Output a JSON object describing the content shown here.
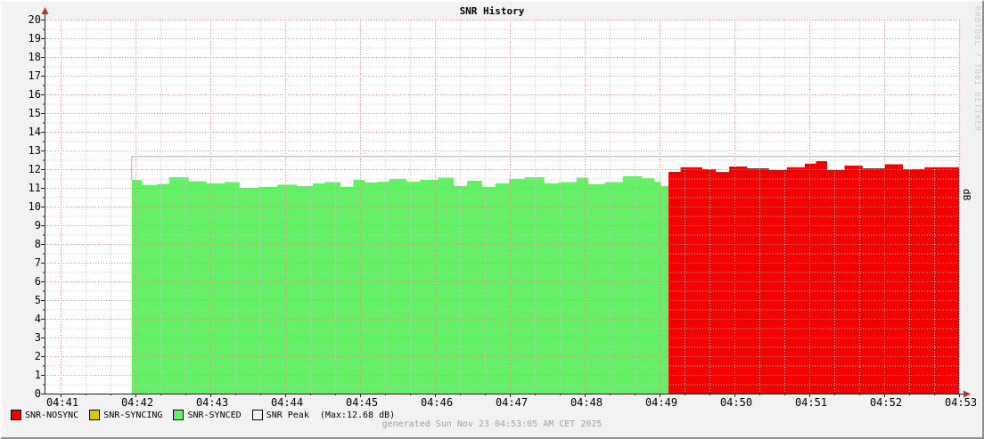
{
  "title": "SNR History",
  "watermark": "RRDTOOL / TOBI OETIKER",
  "footer": "generated Sun Nov 23 04:53:05 AM CET 2025",
  "legend": {
    "items": [
      {
        "id": "snr-nosync",
        "label": "SNR-NOSYNC",
        "color": "#f30000",
        "suffix": ""
      },
      {
        "id": "snr-syncing",
        "label": "SNR-SYNCING",
        "color": "#d9c800",
        "suffix": ""
      },
      {
        "id": "snr-synced",
        "label": "SNR-SYNCED",
        "color": "#64f064",
        "suffix": ""
      },
      {
        "id": "snr-peak",
        "label": "SNR Peak",
        "color": "#f2f2f2",
        "suffix": "(Max:12.68 dB)"
      }
    ]
  },
  "chart_data": {
    "type": "area",
    "title": "SNR History",
    "y_axis": {
      "min": 0,
      "max": 20,
      "major_step": 1,
      "minor_step": 0.5,
      "unit_right": "dB"
    },
    "x_axis": {
      "tick_labels": [
        "04:41",
        "04:42",
        "04:43",
        "04:44",
        "04:45",
        "04:46",
        "04:47",
        "04:48",
        "04:49",
        "04:50",
        "04:51",
        "04:52",
        "04:53"
      ],
      "minor_ticks_per_interval": 3
    },
    "series": [
      {
        "name": "SNR-SYNCED",
        "type": "area",
        "color": "#64f064",
        "t_end": 8.12,
        "steps": [
          [
            0.95,
            11.43
          ],
          [
            1.09,
            11.14
          ],
          [
            1.28,
            11.21
          ],
          [
            1.45,
            11.57
          ],
          [
            1.71,
            11.36
          ],
          [
            1.95,
            11.24
          ],
          [
            2.19,
            11.31
          ],
          [
            2.39,
            11.0
          ],
          [
            2.64,
            11.05
          ],
          [
            2.9,
            11.17
          ],
          [
            3.16,
            11.1
          ],
          [
            3.37,
            11.24
          ],
          [
            3.53,
            11.31
          ],
          [
            3.74,
            11.05
          ],
          [
            3.91,
            11.43
          ],
          [
            4.06,
            11.29
          ],
          [
            4.23,
            11.33
          ],
          [
            4.39,
            11.48
          ],
          [
            4.62,
            11.33
          ],
          [
            4.8,
            11.43
          ],
          [
            5.04,
            11.55
          ],
          [
            5.25,
            11.1
          ],
          [
            5.43,
            11.38
          ],
          [
            5.63,
            11.05
          ],
          [
            5.81,
            11.24
          ],
          [
            5.99,
            11.48
          ],
          [
            6.2,
            11.57
          ],
          [
            6.46,
            11.24
          ],
          [
            6.65,
            11.31
          ],
          [
            6.89,
            11.55
          ],
          [
            7.05,
            11.2
          ],
          [
            7.27,
            11.31
          ],
          [
            7.51,
            11.62
          ],
          [
            7.77,
            11.52
          ],
          [
            7.93,
            11.33
          ],
          [
            8.02,
            11.1
          ]
        ]
      },
      {
        "name": "SNR-NOSYNC",
        "type": "area",
        "color": "#f30000",
        "t_end": 12.0,
        "steps": [
          [
            8.12,
            11.86
          ],
          [
            8.28,
            12.1
          ],
          [
            8.57,
            12.0
          ],
          [
            8.75,
            11.85
          ],
          [
            8.93,
            12.14
          ],
          [
            9.17,
            12.05
          ],
          [
            9.46,
            11.95
          ],
          [
            9.7,
            12.1
          ],
          [
            9.94,
            12.3
          ],
          [
            10.09,
            12.43
          ],
          [
            10.24,
            11.95
          ],
          [
            10.47,
            12.19
          ],
          [
            10.71,
            12.05
          ],
          [
            11.01,
            12.26
          ],
          [
            11.25,
            12.0
          ],
          [
            11.54,
            12.1
          ]
        ]
      },
      {
        "name": "SNR-SYNCING",
        "type": "area",
        "color": "#d9c800",
        "t_end": null,
        "steps": []
      },
      {
        "name": "SNR Peak",
        "type": "hline",
        "color": "#c4c4c4",
        "value": 12.68,
        "t_start": 0.95,
        "t_end": 12.0,
        "max_label": "Max:12.68 dB"
      }
    ],
    "colors": {
      "page_bg": "#f2f2f2",
      "plot_bg": "#ffffff",
      "grid_major": "#f08080",
      "grid_minor": "#c9c9c9",
      "axis": "#222222",
      "arrow": "#c03030"
    },
    "legend_position": "bottom"
  }
}
